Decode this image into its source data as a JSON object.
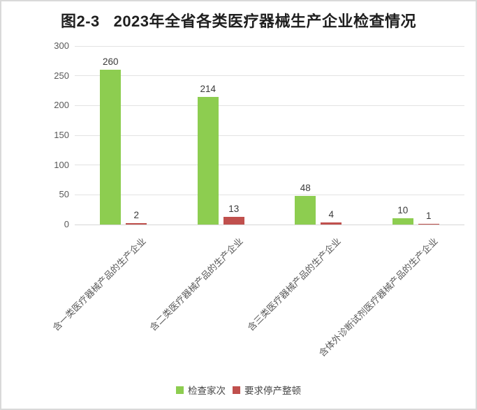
{
  "title": "图2-3   2023年全省各类医疗器械生产企业检查情况",
  "colors": {
    "series_green": "#8dcd50",
    "series_red": "#c0504d",
    "grid": "#e2e2e2",
    "axis_text": "#595959",
    "data_label_text": "#3a3a3a",
    "title_text": "#1f1f1f",
    "frame_border": "#d9d9d9"
  },
  "chart_data": {
    "type": "bar",
    "title": "图2-3   2023年全省各类医疗器械生产企业检查情况",
    "categories": [
      "含一类医疗器械产品的生产企业",
      "含二类医疗器械产品的生产企业",
      "含三类医疗器械产品的生产企业",
      "含体外诊断试剂医疗器械产品的生产企业"
    ],
    "series": [
      {
        "name": "检查家次",
        "color": "#8dcd50",
        "values": [
          260,
          214,
          48,
          10
        ]
      },
      {
        "name": "要求停产整顿",
        "color": "#c0504d",
        "values": [
          2,
          13,
          4,
          1
        ]
      }
    ],
    "data_labels": true,
    "xlabel": "",
    "ylabel": "",
    "ylim": [
      0,
      300
    ],
    "yticks": [
      0,
      50,
      100,
      150,
      200,
      250,
      300
    ],
    "grid": "horizontal",
    "legend_position": "bottom",
    "category_label_rotation_deg": 45
  }
}
